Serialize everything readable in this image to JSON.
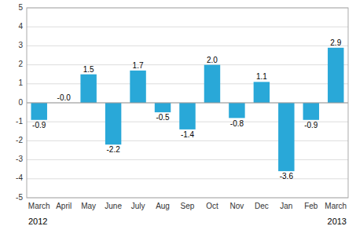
{
  "chart_data": {
    "type": "bar",
    "categories": [
      "March",
      "April",
      "May",
      "June",
      "July",
      "Aug",
      "Sep",
      "Oct",
      "Nov",
      "Dec",
      "Jan",
      "Feb",
      "March"
    ],
    "values": [
      -0.9,
      -0.0,
      1.5,
      -2.2,
      1.7,
      -0.5,
      -1.4,
      2.0,
      -0.8,
      1.1,
      -3.6,
      -0.9,
      2.9
    ],
    "data_labels": true,
    "value_labels": [
      "-0.9",
      "-0.0",
      "1.5",
      "-2.2",
      "1.7",
      "-0.5",
      "-1.4",
      "2.0",
      "-0.8",
      "1.1",
      "-3.6",
      "-0.9",
      "2.9"
    ],
    "color": "#29a8d8",
    "ylim": [
      -5,
      5
    ],
    "yticks": [
      -5,
      -4,
      -3,
      -2,
      -1,
      0,
      1,
      2,
      3,
      4,
      5
    ],
    "grid": true,
    "annotations": [
      "2012",
      "2013"
    ]
  }
}
